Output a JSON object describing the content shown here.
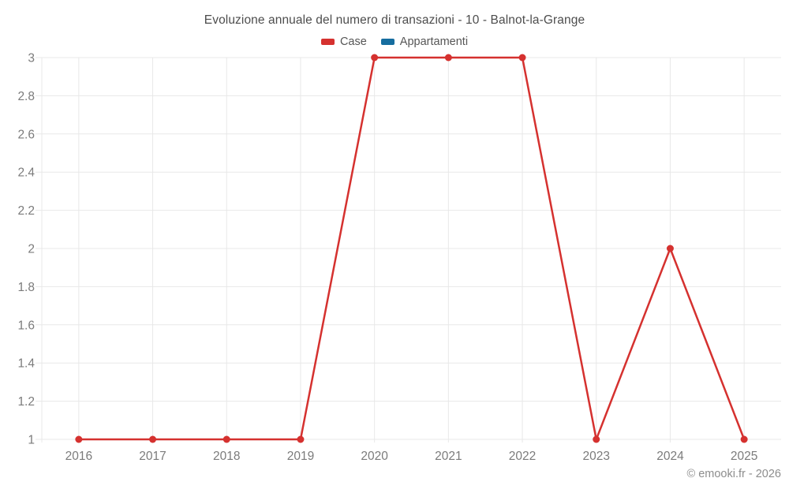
{
  "chart_data": {
    "type": "line",
    "title": "Evoluzione annuale del numero di transazioni - 10 - Balnot-la-Grange",
    "categories": [
      "2016",
      "2017",
      "2018",
      "2019",
      "2020",
      "2021",
      "2022",
      "2023",
      "2024",
      "2025"
    ],
    "series": [
      {
        "name": "Case",
        "color": "#d5312f",
        "values": [
          1,
          1,
          1,
          1,
          3,
          3,
          3,
          1,
          2,
          1
        ]
      },
      {
        "name": "Appartamenti",
        "color": "#166d9f",
        "values": [
          null,
          null,
          null,
          null,
          null,
          null,
          null,
          null,
          null,
          null
        ]
      }
    ],
    "xlabel": "",
    "ylabel": "",
    "ylim": [
      1,
      3
    ],
    "ytick_step": 0.2,
    "grid": true,
    "legend_position": "top",
    "grid_color": "#e8e8e8",
    "tick_label_color": "#7b7b7b"
  },
  "watermark": "© emooki.fr - 2026"
}
